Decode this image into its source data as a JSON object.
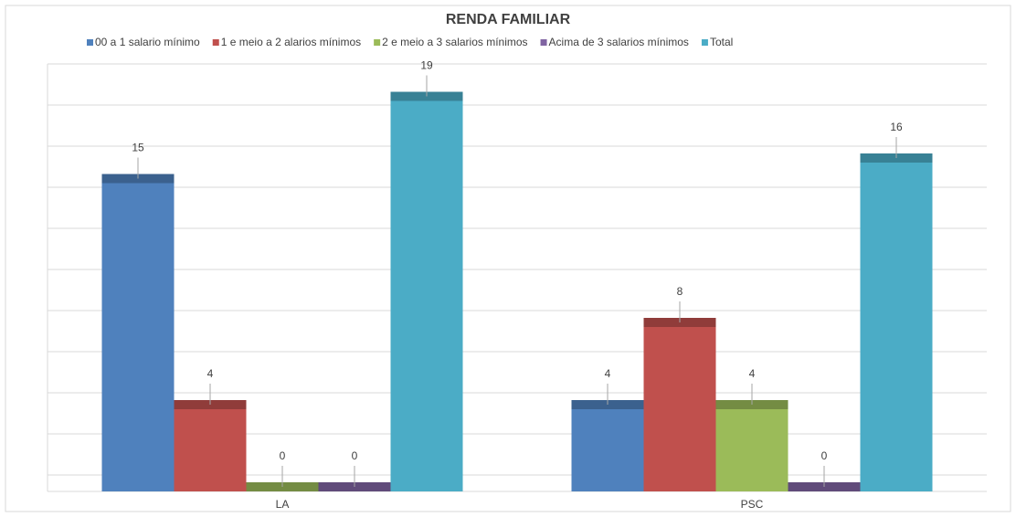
{
  "chart_data": {
    "type": "bar",
    "title": "RENDA FAMILIAR",
    "categories": [
      "LA",
      "PSC"
    ],
    "series": [
      {
        "name": "00  a 1 salario mínimo",
        "color": "#4f81bd",
        "values": [
          15,
          4
        ]
      },
      {
        "name": "1 e meio a 2 alarios mínimos",
        "color": "#c0504d",
        "values": [
          4,
          8
        ]
      },
      {
        "name": "2 e meio a 3 salarios mínimos",
        "color": "#9bbb59",
        "values": [
          0,
          4
        ]
      },
      {
        "name": "Acima de 3 salarios mínimos",
        "color": "#8064a2",
        "values": [
          0,
          0
        ]
      },
      {
        "name": "Total",
        "color": "#4bacc6",
        "values": [
          19,
          16
        ]
      }
    ],
    "ylim": [
      0,
      20
    ],
    "yticks": [
      0,
      2,
      4,
      6,
      8,
      10,
      12,
      14,
      16,
      18,
      20
    ],
    "grid": true,
    "legend": "top"
  }
}
